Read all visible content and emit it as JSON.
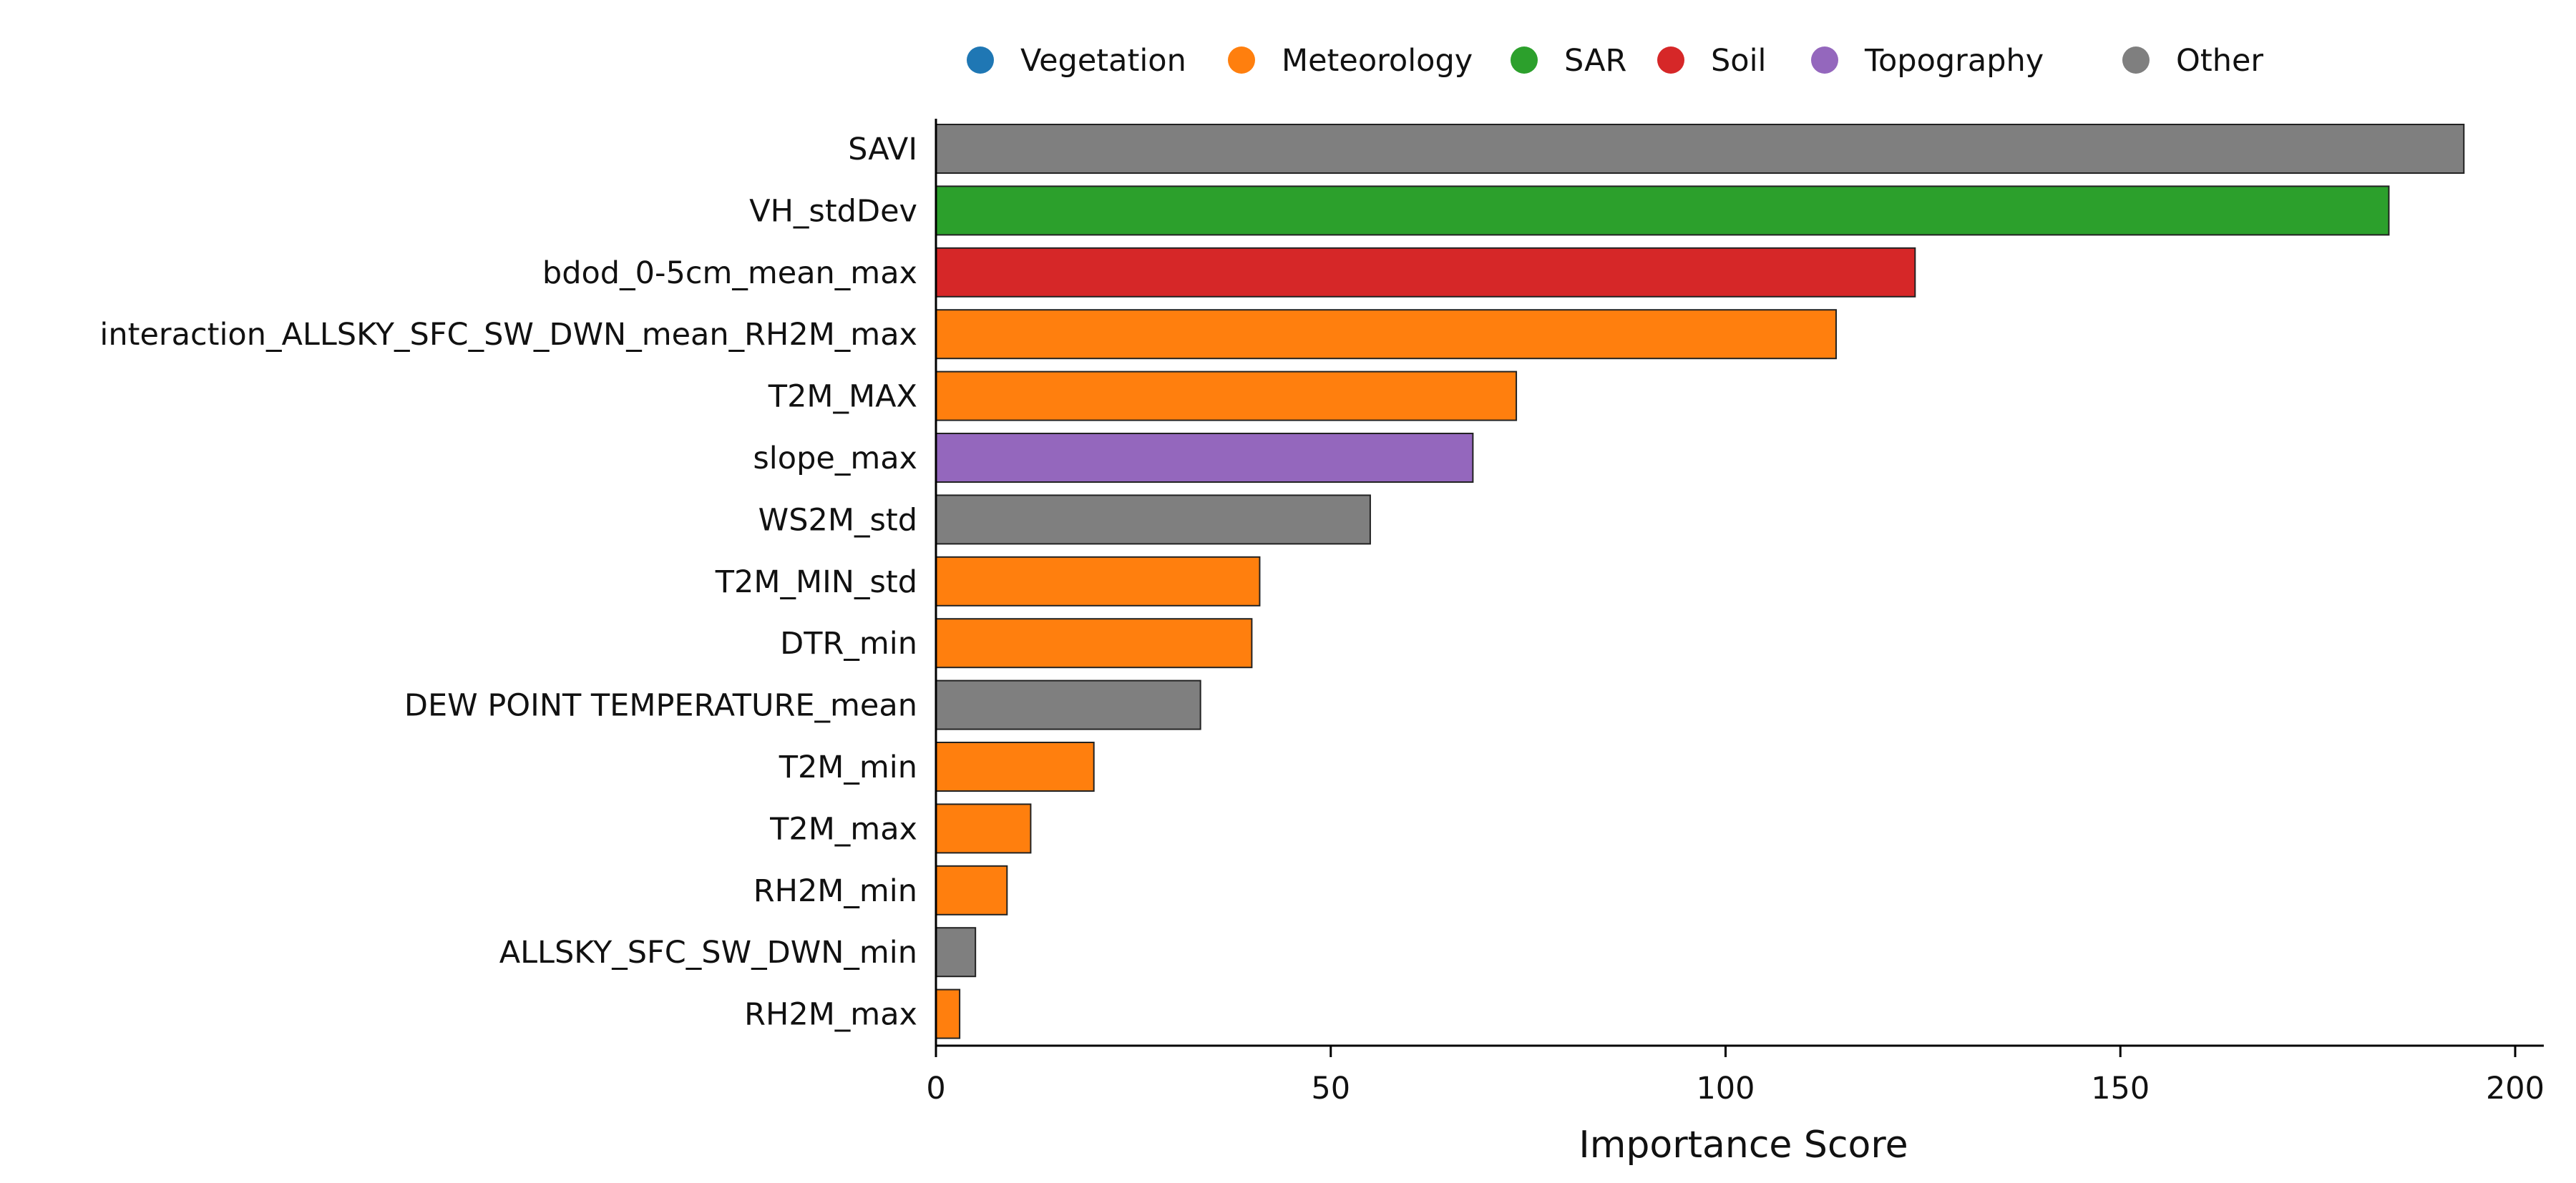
{
  "chart_data": {
    "type": "bar",
    "orientation": "horizontal",
    "title": "",
    "xlabel": "Importance Score",
    "ylabel": "",
    "xlim": [
      0,
      203
    ],
    "xticks": [
      0,
      50,
      100,
      150,
      200
    ],
    "grid": false,
    "legend_position": "top",
    "legend": [
      {
        "name": "Vegetation",
        "color": "#1f77b4"
      },
      {
        "name": "Meteorology",
        "color": "#ff7f0e"
      },
      {
        "name": "SAR",
        "color": "#2ca02c"
      },
      {
        "name": "Soil",
        "color": "#d62728"
      },
      {
        "name": "Topography",
        "color": "#9467bd"
      },
      {
        "name": "Other",
        "color": "#7f7f7f"
      }
    ],
    "bars": [
      {
        "label": "SAVI",
        "value": 193.5,
        "group": "Other"
      },
      {
        "label": "VH_stdDev",
        "value": 184,
        "group": "SAR"
      },
      {
        "label": "bdod_0-5cm_mean_max",
        "value": 124,
        "group": "Soil"
      },
      {
        "label": "interaction_ALLSKY_SFC_SW_DWN_mean_RH2M_max",
        "value": 114,
        "group": "Meteorology"
      },
      {
        "label": "T2M_MAX",
        "value": 73.5,
        "group": "Meteorology"
      },
      {
        "label": "slope_max",
        "value": 68,
        "group": "Topography"
      },
      {
        "label": "WS2M_std",
        "value": 55,
        "group": "Other"
      },
      {
        "label": "T2M_MIN_std",
        "value": 41,
        "group": "Meteorology"
      },
      {
        "label": "DTR_min",
        "value": 40,
        "group": "Meteorology"
      },
      {
        "label": "DEW POINT TEMPERATURE_mean",
        "value": 33.5,
        "group": "Other"
      },
      {
        "label": "T2M_min",
        "value": 20,
        "group": "Meteorology"
      },
      {
        "label": "T2M_max",
        "value": 12,
        "group": "Meteorology"
      },
      {
        "label": "RH2M_min",
        "value": 9,
        "group": "Meteorology"
      },
      {
        "label": "ALLSKY_SFC_SW_DWN_min",
        "value": 5,
        "group": "Other"
      },
      {
        "label": "RH2M_max",
        "value": 3,
        "group": "Meteorology"
      }
    ]
  }
}
